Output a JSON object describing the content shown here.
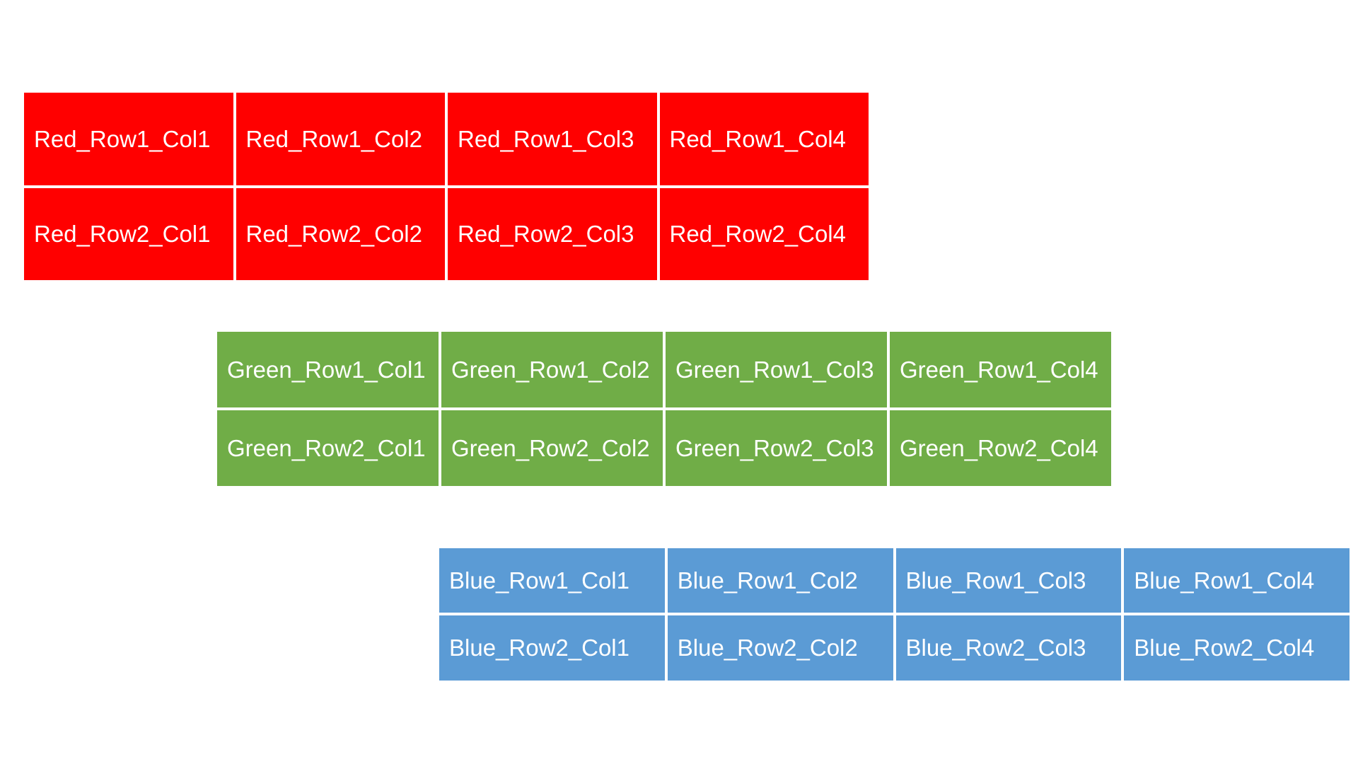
{
  "tables": [
    {
      "id": "red",
      "color": "#ff0000",
      "rows": [
        [
          "Red_Row1_Col1",
          "Red_Row1_Col2",
          "Red_Row1_Col3",
          "Red_Row1_Col4"
        ],
        [
          "Red_Row2_Col1",
          "Red_Row2_Col2",
          "Red_Row2_Col3",
          "Red_Row2_Col4"
        ]
      ]
    },
    {
      "id": "green",
      "color": "#70ad47",
      "rows": [
        [
          "Green_Row1_Col1",
          "Green_Row1_Col2",
          "Green_Row1_Col3",
          "Green_Row1_Col4"
        ],
        [
          "Green_Row2_Col1",
          "Green_Row2_Col2",
          "Green_Row2_Col3",
          "Green_Row2_Col4"
        ]
      ]
    },
    {
      "id": "blue",
      "color": "#5b9bd5",
      "rows": [
        [
          "Blue_Row1_Col1",
          "Blue_Row1_Col2",
          "Blue_Row1_Col3",
          "Blue_Row1_Col4"
        ],
        [
          "Blue_Row2_Col1",
          "Blue_Row2_Col2",
          "Blue_Row2_Col3",
          "Blue_Row2_Col4"
        ]
      ]
    }
  ]
}
